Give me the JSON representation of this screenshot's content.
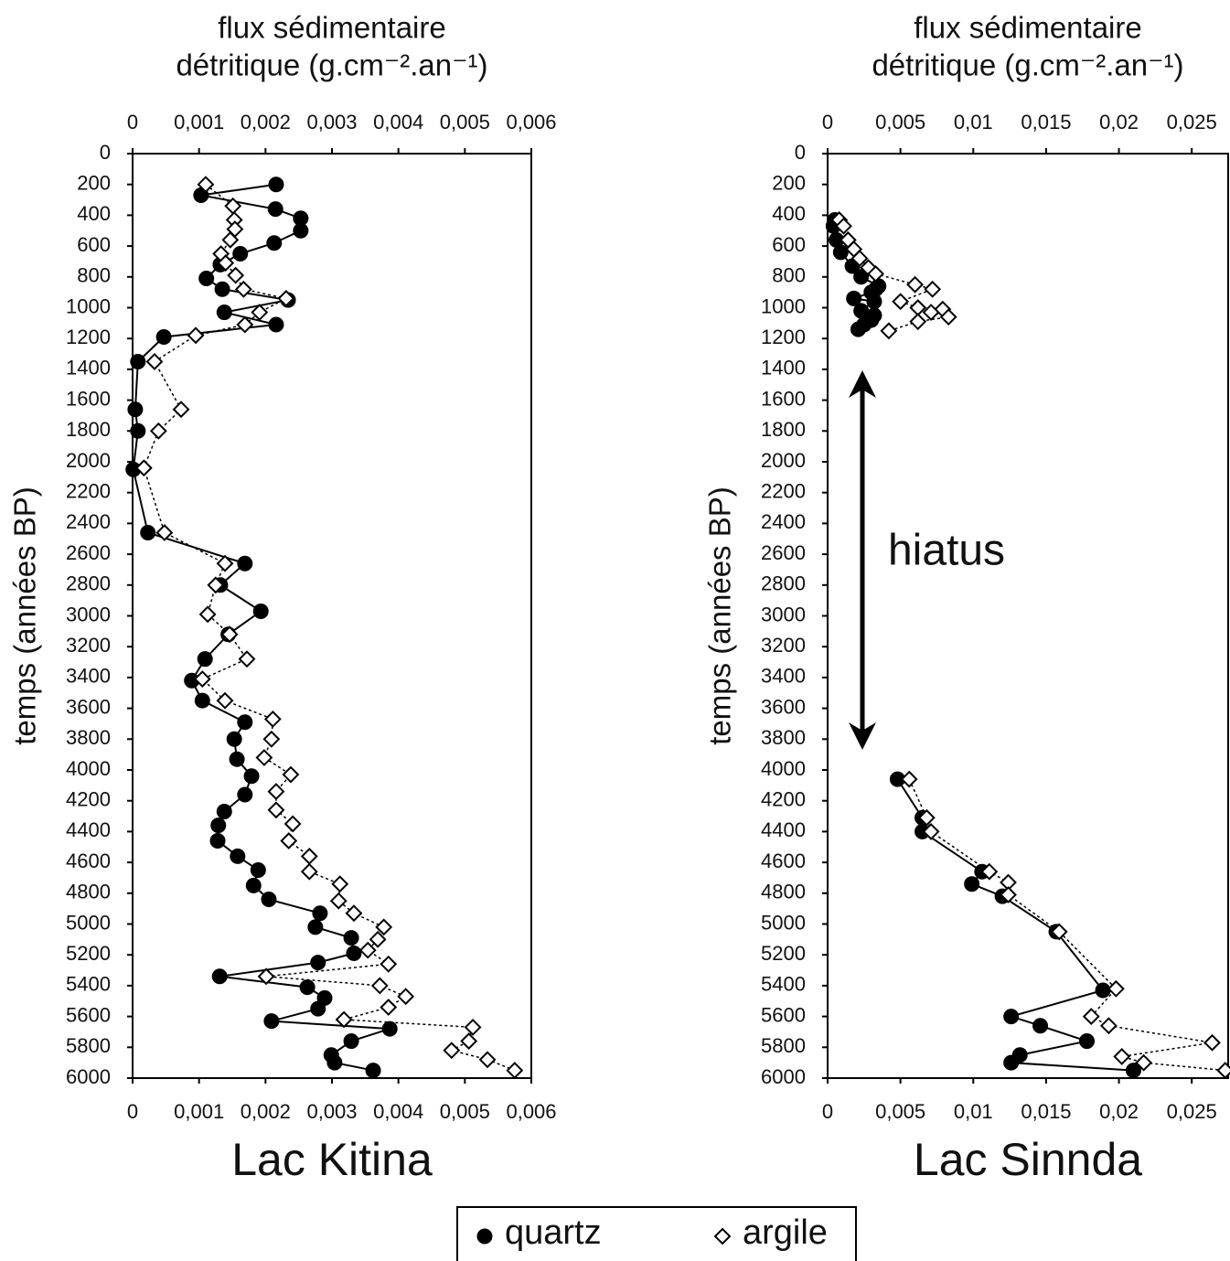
{
  "chart_data": [
    {
      "type": "scatter",
      "title": "Lac Kitina",
      "xlabel": [
        "flux sédimentaire",
        "détritique (g.cm⁻².an⁻¹)"
      ],
      "ylabel": "temps (années BP)",
      "xlim": [
        0,
        0.006
      ],
      "xticks": [
        0,
        {
          "value": 0.001,
          "label": "0,001"
        },
        {
          "value": 0.002,
          "label": "0,002"
        },
        {
          "value": 0.003,
          "label": "0,003"
        },
        {
          "value": 0.004,
          "label": "0,004"
        },
        {
          "value": 0.005,
          "label": "0,005"
        },
        {
          "value": 0.006,
          "label": "0,006"
        }
      ],
      "ylim": [
        0,
        6000
      ],
      "y_inverted": true,
      "yticks": [
        0,
        200,
        400,
        600,
        800,
        1000,
        1200,
        1400,
        1600,
        1800,
        2000,
        2200,
        2400,
        2600,
        2800,
        3000,
        3200,
        3400,
        3600,
        3800,
        4000,
        4200,
        4400,
        4600,
        4800,
        5000,
        5200,
        5400,
        5600,
        5800,
        6000
      ],
      "legend": "bottom",
      "series": [
        {
          "name": "quartz",
          "color": "#000000",
          "marker": "circle",
          "marker_fill": "#000000",
          "line_style": "solid",
          "x": [
            0.00216,
            0.00103,
            0.00215,
            0.00253,
            0.00253,
            0.00213,
            0.00162,
            0.00132,
            0.00111,
            0.00135,
            0.00234,
            0.00138,
            0.00216,
            0.00047,
            8e-05,
            4e-05,
            8e-05,
            1e-05,
            0.00023,
            0.00169,
            0.00132,
            0.00193,
            0.00144,
            0.00109,
            0.00089,
            0.00105,
            0.00169,
            0.00153,
            0.00157,
            0.00179,
            0.00169,
            0.00138,
            0.00129,
            0.00128,
            0.00158,
            0.00189,
            0.00182,
            0.00205,
            0.00282,
            0.00275,
            0.00329,
            0.00333,
            0.00279,
            0.00131,
            0.00263,
            0.00289,
            0.00279,
            0.00209,
            0.00387,
            0.00329,
            0.00299,
            0.00304,
            0.00362
          ],
          "values": [
            200,
            270,
            360,
            420,
            500,
            580,
            650,
            720,
            810,
            880,
            950,
            1030,
            1110,
            1190,
            1350,
            1660,
            1800,
            2050,
            2460,
            2660,
            2800,
            2970,
            3120,
            3280,
            3420,
            3550,
            3690,
            3800,
            3930,
            4040,
            4160,
            4270,
            4360,
            4460,
            4560,
            4650,
            4750,
            4840,
            4930,
            5020,
            5090,
            5190,
            5250,
            5340,
            5410,
            5480,
            5550,
            5630,
            5680,
            5760,
            5850,
            5900,
            5950
          ]
        },
        {
          "name": "argile",
          "color": "#000000",
          "marker": "diamond",
          "marker_fill": "#ffffff",
          "line_style": "dotted",
          "x": [
            0.0011,
            0.00151,
            0.00153,
            0.00154,
            0.00147,
            0.00133,
            0.0014,
            0.00155,
            0.00167,
            0.00231,
            0.00191,
            0.00169,
            0.00095,
            0.00033,
            0.00073,
            0.00039,
            0.00017,
            0.00048,
            0.00139,
            0.00125,
            0.00113,
            0.00146,
            0.00172,
            0.00105,
            0.00139,
            0.00211,
            0.00209,
            0.00198,
            0.00238,
            0.00216,
            0.00216,
            0.00241,
            0.00235,
            0.00266,
            0.00266,
            0.00312,
            0.0031,
            0.00333,
            0.00378,
            0.00369,
            0.00354,
            0.00385,
            0.00201,
            0.00372,
            0.00411,
            0.00385,
            0.00318,
            0.00512,
            0.00506,
            0.0048,
            0.00534,
            0.00575
          ],
          "values": [
            200,
            340,
            430,
            490,
            560,
            650,
            710,
            790,
            880,
            940,
            1030,
            1110,
            1180,
            1350,
            1660,
            1800,
            2040,
            2460,
            2660,
            2800,
            2990,
            3120,
            3280,
            3410,
            3550,
            3670,
            3800,
            3920,
            4030,
            4140,
            4260,
            4350,
            4460,
            4560,
            4660,
            4740,
            4850,
            4930,
            5020,
            5100,
            5170,
            5260,
            5340,
            5400,
            5470,
            5540,
            5620,
            5670,
            5760,
            5820,
            5880,
            5950
          ]
        }
      ]
    },
    {
      "type": "scatter",
      "title": "Lac Sinnda",
      "xlabel": [
        "flux sédimentaire",
        "détritique (g.cm⁻².an⁻¹)"
      ],
      "ylabel": "temps (années BP)",
      "xlim": [
        0,
        0.0275
      ],
      "xticks": [
        0,
        {
          "value": 0.005,
          "label": "0,005"
        },
        {
          "value": 0.01,
          "label": "0,01"
        },
        {
          "value": 0.015,
          "label": "0,015"
        },
        {
          "value": 0.02,
          "label": "0,02"
        },
        {
          "value": 0.025,
          "label": "0,025"
        }
      ],
      "ylim": [
        0,
        6000
      ],
      "y_inverted": true,
      "yticks": [
        0,
        200,
        400,
        600,
        800,
        1000,
        1200,
        1400,
        1600,
        1800,
        2000,
        2200,
        2400,
        2600,
        2800,
        3000,
        3200,
        3400,
        3600,
        3800,
        4000,
        4200,
        4400,
        4600,
        4800,
        5000,
        5200,
        5400,
        5600,
        5800,
        6000
      ],
      "annotation": "hiatus",
      "series": [
        {
          "name": "quartz",
          "color": "#000000",
          "marker": "circle",
          "marker_fill": "#000000",
          "line_style": "solid",
          "x": [
            0.0005,
            0.0004,
            0.0006,
            0.0009,
            0.0017,
            0.0023,
            0.0035,
            0.0033,
            0.003,
            0.0018,
            0.0032,
            0.0023,
            0.0032,
            0.003,
            0.0025,
            0.0021,
            null,
            0.0048,
            0.0065,
            0.0065,
            0.0106,
            0.0099,
            0.012,
            0.0157,
            0.0189,
            0.0126,
            0.0146,
            0.0178,
            0.0132,
            0.0126,
            0.021
          ],
          "values": [
            430,
            470,
            560,
            640,
            730,
            800,
            860,
            880,
            900,
            940,
            960,
            1020,
            1050,
            1080,
            1110,
            1140,
            null,
            4060,
            4310,
            4400,
            4660,
            4740,
            4820,
            5050,
            5430,
            5600,
            5660,
            5760,
            5850,
            5900,
            5950
          ]
        },
        {
          "name": "argile",
          "color": "#000000",
          "marker": "diamond",
          "marker_fill": "#ffffff",
          "line_style": "dotted",
          "x": [
            0.0008,
            0.0011,
            0.0014,
            0.0018,
            0.0022,
            0.0028,
            0.0033,
            0.006,
            0.0072,
            0.005,
            0.0062,
            0.0079,
            0.0071,
            0.0083,
            0.0062,
            0.0042,
            null,
            0.0056,
            0.0068,
            0.0071,
            0.0111,
            0.0124,
            0.0124,
            0.0159,
            0.0198,
            0.0181,
            0.0193,
            0.0264,
            0.0202,
            0.0217,
            0.0273
          ],
          "values": [
            430,
            470,
            560,
            620,
            680,
            740,
            780,
            850,
            880,
            960,
            1000,
            1010,
            1030,
            1060,
            1090,
            1150,
            null,
            4060,
            4310,
            4400,
            4660,
            4730,
            4810,
            5050,
            5420,
            5600,
            5660,
            5770,
            5860,
            5900,
            5950
          ]
        }
      ]
    }
  ]
}
